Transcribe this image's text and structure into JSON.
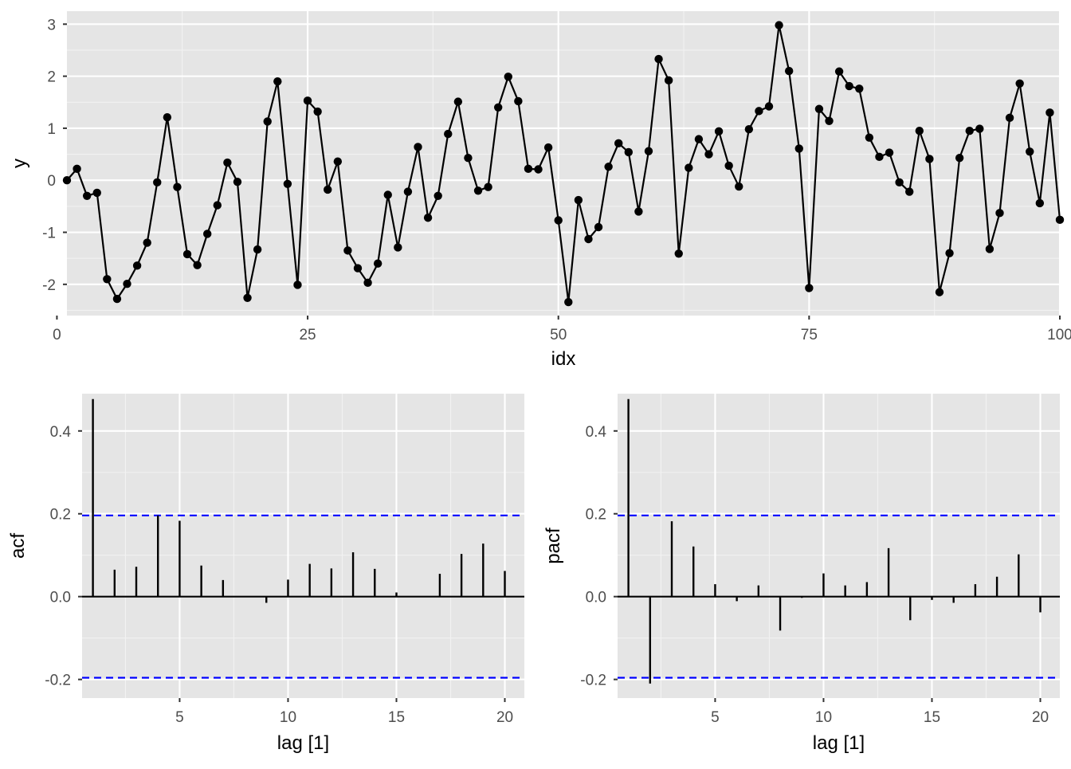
{
  "colors": {
    "panel_bg": "#e5e5e5",
    "grid_major": "#ffffff",
    "grid_minor": "#f2f2f2",
    "series": "#000000",
    "threshold": "#0000ff",
    "tick_text": "#4d4d4d"
  },
  "chart_data": [
    {
      "type": "line",
      "xlabel": "idx",
      "ylabel": "y",
      "xlim": [
        1,
        100
      ],
      "ylim": [
        -2.6,
        3.25
      ],
      "x_ticks": [
        0,
        25,
        50,
        75,
        100
      ],
      "y_ticks": [
        -2,
        -1,
        0,
        1,
        2,
        3
      ],
      "x_tick_labels": [
        "0",
        "25",
        "50",
        "75",
        "100"
      ],
      "y_tick_labels": [
        "-2",
        "-1",
        "0",
        "1",
        "2",
        "3"
      ],
      "grid": true,
      "markers": true,
      "series": [
        {
          "values": [
            0.0,
            0.22,
            -0.3,
            -0.24,
            -1.9,
            -2.28,
            -1.99,
            -1.64,
            -1.2,
            -0.04,
            1.21,
            -0.13,
            -1.42,
            -1.63,
            -1.03,
            -0.48,
            0.34,
            -0.03,
            -2.26,
            -1.33,
            1.13,
            1.9,
            -0.07,
            -2.01,
            1.53,
            1.32,
            -0.18,
            0.36,
            -1.35,
            -1.69,
            -1.97,
            -1.6,
            -0.28,
            -1.29,
            -0.22,
            0.64,
            -0.72,
            -0.3,
            0.89,
            1.51,
            0.43,
            -0.2,
            -0.13,
            1.4,
            1.99,
            1.52,
            0.22,
            0.21,
            0.63,
            -0.77,
            -2.34,
            -0.38,
            -1.13,
            -0.9,
            0.26,
            0.71,
            0.54,
            -0.6,
            0.56,
            2.33,
            1.92,
            -1.41,
            0.24,
            0.79,
            0.5,
            0.94,
            0.28,
            -0.12,
            0.98,
            1.33,
            1.42,
            2.98,
            2.1,
            0.61,
            -2.07,
            1.37,
            1.14,
            2.09,
            1.81,
            1.76,
            0.82,
            0.45,
            0.53,
            -0.04,
            -0.22,
            0.95,
            0.41,
            -2.15,
            -1.4,
            0.43,
            0.95,
            0.99,
            -1.32,
            -0.63,
            1.2,
            1.86,
            0.55,
            -0.44,
            1.3,
            -0.76
          ]
        }
      ]
    },
    {
      "type": "bar",
      "xlabel": "lag [1]",
      "ylabel": "acf",
      "xlim": [
        0.5,
        20.9
      ],
      "ylim": [
        -0.245,
        0.49
      ],
      "x_ticks": [
        5,
        10,
        15,
        20
      ],
      "y_ticks": [
        -0.2,
        0.0,
        0.2,
        0.4
      ],
      "x_tick_labels": [
        "5",
        "10",
        "15",
        "20"
      ],
      "y_tick_labels": [
        "-0.2",
        "0.0",
        "0.2",
        "0.4"
      ],
      "confidence_band": 0.196,
      "grid": true,
      "categories": [
        1,
        2,
        3,
        4,
        5,
        6,
        7,
        8,
        9,
        10,
        11,
        12,
        13,
        14,
        15,
        16,
        17,
        18,
        19,
        20
      ],
      "values": [
        0.477,
        0.065,
        0.072,
        0.196,
        0.183,
        0.075,
        0.04,
        0.001,
        -0.015,
        0.041,
        0.079,
        0.068,
        0.107,
        0.067,
        0.01,
        0.0,
        0.055,
        0.103,
        0.128,
        0.062
      ]
    },
    {
      "type": "bar",
      "xlabel": "lag [1]",
      "ylabel": "pacf",
      "xlim": [
        0.5,
        20.9
      ],
      "ylim": [
        -0.245,
        0.49
      ],
      "x_ticks": [
        5,
        10,
        15,
        20
      ],
      "y_ticks": [
        -0.2,
        0.0,
        0.2,
        0.4
      ],
      "x_tick_labels": [
        "5",
        "10",
        "15",
        "20"
      ],
      "y_tick_labels": [
        "-0.2",
        "0.0",
        "0.2",
        "0.4"
      ],
      "confidence_band": 0.196,
      "grid": true,
      "categories": [
        1,
        2,
        3,
        4,
        5,
        6,
        7,
        8,
        9,
        10,
        11,
        12,
        13,
        14,
        15,
        16,
        17,
        18,
        19,
        20
      ],
      "values": [
        0.477,
        -0.21,
        0.182,
        0.121,
        0.03,
        -0.011,
        0.027,
        -0.082,
        -0.003,
        0.056,
        0.027,
        0.035,
        0.117,
        -0.057,
        -0.008,
        -0.015,
        0.03,
        0.048,
        0.102,
        -0.038
      ]
    }
  ]
}
